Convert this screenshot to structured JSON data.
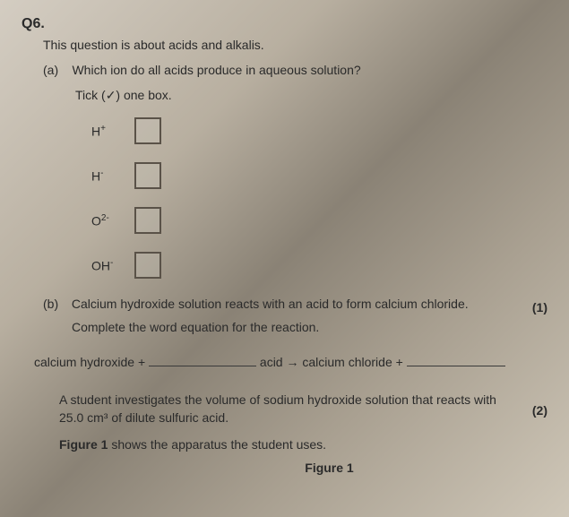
{
  "question_number": "Q6.",
  "intro": "This question is about acids and alkalis.",
  "part_a": {
    "label": "(a)",
    "text": "Which ion do all acids produce in aqueous solution?",
    "instruction": "Tick (✓) one box."
  },
  "options": [
    {
      "symbol": "H",
      "sup": "+"
    },
    {
      "symbol": "H",
      "sup": "-"
    },
    {
      "symbol": "O",
      "sup": "2-"
    },
    {
      "symbol": "OH",
      "sup": "-"
    }
  ],
  "marks_a": "(1)",
  "part_b": {
    "label": "(b)",
    "text": "Calcium hydroxide solution reacts with an acid to form calcium chloride.",
    "complete": "Complete the word equation for the reaction."
  },
  "equation": {
    "lhs": "calcium hydroxide +",
    "mid": "acid → calcium chloride +"
  },
  "marks_b": "(2)",
  "student_line1": "A student investigates the volume of sodium hydroxide solution that reacts with",
  "student_line2": "25.0 cm³ of dilute sulfuric acid.",
  "figure_intro_a": "Figure 1",
  "figure_intro_b": " shows the apparatus the student uses.",
  "figure_label": "Figure 1"
}
